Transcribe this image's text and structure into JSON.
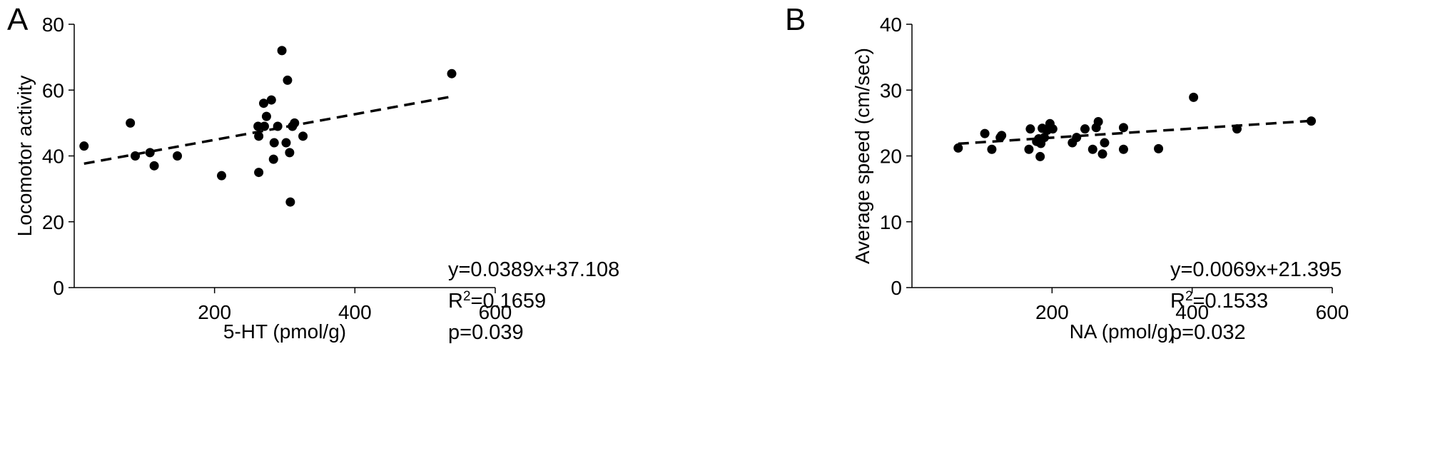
{
  "chart_data": [
    {
      "panel_label": "A",
      "type": "scatter",
      "xlabel": "5-HT (pmol/g)",
      "ylabel": "Locomotor activity",
      "xlim": [
        0,
        600
      ],
      "ylim": [
        0,
        80
      ],
      "xticks": [
        "200",
        "400",
        "600"
      ],
      "yticks": [
        "0",
        "20",
        "40",
        "60",
        "80"
      ],
      "grid": false,
      "legend": "none",
      "points": [
        {
          "x": 14,
          "y": 43
        },
        {
          "x": 80,
          "y": 50
        },
        {
          "x": 87,
          "y": 40
        },
        {
          "x": 108,
          "y": 41
        },
        {
          "x": 114,
          "y": 37
        },
        {
          "x": 147,
          "y": 40
        },
        {
          "x": 210,
          "y": 34
        },
        {
          "x": 262,
          "y": 49
        },
        {
          "x": 263,
          "y": 46
        },
        {
          "x": 263,
          "y": 35
        },
        {
          "x": 270,
          "y": 56
        },
        {
          "x": 271,
          "y": 49
        },
        {
          "x": 274,
          "y": 52
        },
        {
          "x": 281,
          "y": 57
        },
        {
          "x": 284,
          "y": 39
        },
        {
          "x": 285,
          "y": 44
        },
        {
          "x": 290,
          "y": 49
        },
        {
          "x": 296,
          "y": 72
        },
        {
          "x": 302,
          "y": 44
        },
        {
          "x": 304,
          "y": 63
        },
        {
          "x": 307,
          "y": 41
        },
        {
          "x": 308,
          "y": 26
        },
        {
          "x": 311,
          "y": 49
        },
        {
          "x": 314,
          "y": 50
        },
        {
          "x": 326,
          "y": 46
        },
        {
          "x": 538,
          "y": 65
        }
      ],
      "trendline": {
        "slope": 0.0389,
        "intercept": 37.108,
        "x_range": [
          14,
          538
        ],
        "style": "dashed"
      },
      "annotations": {
        "equation": "y=0.0389x+37.108",
        "r2_prefix": "R",
        "r2_sup": "2",
        "r2_value": "=0.1659",
        "p": "p=0.039"
      }
    },
    {
      "panel_label": "B",
      "type": "scatter",
      "xlabel": "NA (pmol/g)",
      "ylabel": "Average speed (cm/sec)",
      "xlim": [
        0,
        600
      ],
      "ylim": [
        0,
        40
      ],
      "xticks": [
        "200",
        "400",
        "600"
      ],
      "yticks": [
        "0",
        "10",
        "20",
        "30",
        "40"
      ],
      "grid": false,
      "legend": "none",
      "points": [
        {
          "x": 66,
          "y": 21.2
        },
        {
          "x": 104,
          "y": 23.4
        },
        {
          "x": 114,
          "y": 21
        },
        {
          "x": 126,
          "y": 22.8
        },
        {
          "x": 128,
          "y": 23.1
        },
        {
          "x": 167,
          "y": 21
        },
        {
          "x": 169,
          "y": 24.1
        },
        {
          "x": 178,
          "y": 22.2
        },
        {
          "x": 181,
          "y": 22.6
        },
        {
          "x": 183,
          "y": 19.9
        },
        {
          "x": 184,
          "y": 21.9
        },
        {
          "x": 186,
          "y": 24.2
        },
        {
          "x": 189,
          "y": 22.8
        },
        {
          "x": 193,
          "y": 23.9
        },
        {
          "x": 197,
          "y": 24.9
        },
        {
          "x": 201,
          "y": 24.1
        },
        {
          "x": 229,
          "y": 22
        },
        {
          "x": 235,
          "y": 22.8
        },
        {
          "x": 247,
          "y": 24.1
        },
        {
          "x": 258,
          "y": 21
        },
        {
          "x": 263,
          "y": 24.3
        },
        {
          "x": 266,
          "y": 25.2
        },
        {
          "x": 272,
          "y": 20.3
        },
        {
          "x": 275,
          "y": 22
        },
        {
          "x": 302,
          "y": 24.3
        },
        {
          "x": 302,
          "y": 21
        },
        {
          "x": 352,
          "y": 21.1
        },
        {
          "x": 402,
          "y": 28.9
        },
        {
          "x": 464,
          "y": 24.1
        },
        {
          "x": 570,
          "y": 25.3
        }
      ],
      "trendline": {
        "slope": 0.0069,
        "intercept": 21.395,
        "x_range": [
          66,
          570
        ],
        "style": "dashed"
      },
      "annotations": {
        "equation": "y=0.0069x+21.395",
        "r2_prefix": "R",
        "r2_sup": "2",
        "r2_value": "=0.1533",
        "p": "p=0.032"
      }
    }
  ]
}
